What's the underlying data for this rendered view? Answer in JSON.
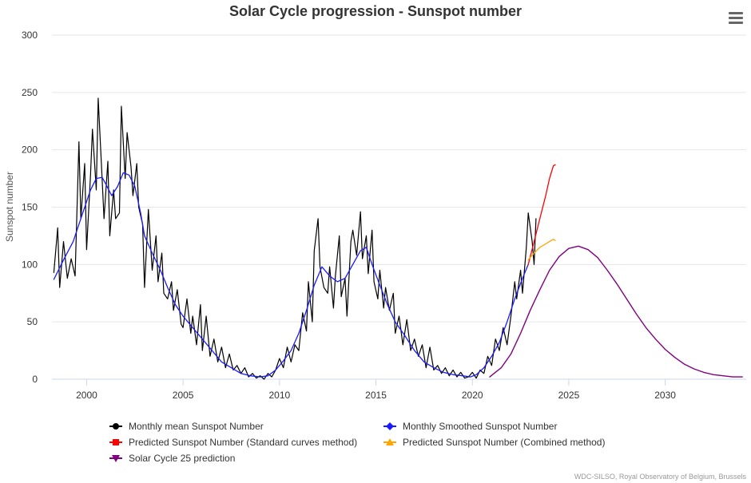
{
  "chart_data": {
    "type": "line",
    "title": "Solar Cycle progression - Sunspot number",
    "xlabel": "",
    "ylabel": "Sunspot number",
    "xlim": [
      1998.2,
      2034.2
    ],
    "ylim": [
      0,
      300
    ],
    "x_ticks": [
      2000,
      2005,
      2010,
      2015,
      2020,
      2025,
      2030
    ],
    "y_ticks": [
      0,
      50,
      100,
      150,
      200,
      250,
      300
    ],
    "grid": "horizontal",
    "legend_position": "bottom",
    "series": [
      {
        "name": "Monthly mean Sunspot Number",
        "color": "#000000",
        "marker": "circle",
        "points": [
          [
            1998.3,
            93
          ],
          [
            1998.5,
            132
          ],
          [
            1998.6,
            80
          ],
          [
            1998.8,
            120
          ],
          [
            1999.0,
            88
          ],
          [
            1999.2,
            105
          ],
          [
            1999.4,
            90
          ],
          [
            1999.6,
            207
          ],
          [
            1999.7,
            140
          ],
          [
            1999.9,
            188
          ],
          [
            2000.0,
            113
          ],
          [
            2000.2,
            178
          ],
          [
            2000.3,
            218
          ],
          [
            2000.5,
            165
          ],
          [
            2000.6,
            245
          ],
          [
            2000.8,
            175
          ],
          [
            2000.9,
            140
          ],
          [
            2001.1,
            190
          ],
          [
            2001.2,
            125
          ],
          [
            2001.4,
            165
          ],
          [
            2001.5,
            140
          ],
          [
            2001.7,
            145
          ],
          [
            2001.8,
            238
          ],
          [
            2002.0,
            175
          ],
          [
            2002.1,
            215
          ],
          [
            2002.3,
            185
          ],
          [
            2002.4,
            160
          ],
          [
            2002.6,
            188
          ],
          [
            2002.7,
            150
          ],
          [
            2002.9,
            135
          ],
          [
            2003.0,
            80
          ],
          [
            2003.2,
            148
          ],
          [
            2003.4,
            95
          ],
          [
            2003.6,
            125
          ],
          [
            2003.7,
            85
          ],
          [
            2003.9,
            110
          ],
          [
            2004.0,
            75
          ],
          [
            2004.2,
            70
          ],
          [
            2004.4,
            85
          ],
          [
            2004.5,
            60
          ],
          [
            2004.7,
            78
          ],
          [
            2004.9,
            48
          ],
          [
            2005.0,
            45
          ],
          [
            2005.2,
            70
          ],
          [
            2005.4,
            40
          ],
          [
            2005.5,
            55
          ],
          [
            2005.7,
            30
          ],
          [
            2005.9,
            65
          ],
          [
            2006.0,
            25
          ],
          [
            2006.2,
            55
          ],
          [
            2006.4,
            20
          ],
          [
            2006.6,
            35
          ],
          [
            2006.8,
            15
          ],
          [
            2007.0,
            28
          ],
          [
            2007.2,
            10
          ],
          [
            2007.4,
            22
          ],
          [
            2007.6,
            8
          ],
          [
            2007.8,
            12
          ],
          [
            2008.0,
            5
          ],
          [
            2008.2,
            10
          ],
          [
            2008.4,
            2
          ],
          [
            2008.6,
            5
          ],
          [
            2008.8,
            1
          ],
          [
            2009.0,
            3
          ],
          [
            2009.2,
            0
          ],
          [
            2009.4,
            5
          ],
          [
            2009.6,
            2
          ],
          [
            2009.8,
            8
          ],
          [
            2010.0,
            18
          ],
          [
            2010.2,
            10
          ],
          [
            2010.4,
            28
          ],
          [
            2010.6,
            15
          ],
          [
            2010.8,
            30
          ],
          [
            2011.0,
            25
          ],
          [
            2011.2,
            58
          ],
          [
            2011.4,
            42
          ],
          [
            2011.5,
            85
          ],
          [
            2011.7,
            50
          ],
          [
            2011.8,
            112
          ],
          [
            2012.0,
            140
          ],
          [
            2012.1,
            98
          ],
          [
            2012.3,
            80
          ],
          [
            2012.5,
            75
          ],
          [
            2012.6,
            98
          ],
          [
            2012.8,
            62
          ],
          [
            2012.9,
            90
          ],
          [
            2013.1,
            125
          ],
          [
            2013.2,
            72
          ],
          [
            2013.4,
            88
          ],
          [
            2013.5,
            55
          ],
          [
            2013.7,
            120
          ],
          [
            2013.8,
            130
          ],
          [
            2014.0,
            108
          ],
          [
            2014.2,
            146
          ],
          [
            2014.3,
            105
          ],
          [
            2014.5,
            125
          ],
          [
            2014.6,
            92
          ],
          [
            2014.8,
            130
          ],
          [
            2014.9,
            85
          ],
          [
            2015.1,
            70
          ],
          [
            2015.2,
            95
          ],
          [
            2015.4,
            62
          ],
          [
            2015.5,
            80
          ],
          [
            2015.7,
            60
          ],
          [
            2015.9,
            75
          ],
          [
            2016.0,
            40
          ],
          [
            2016.2,
            55
          ],
          [
            2016.4,
            30
          ],
          [
            2016.6,
            52
          ],
          [
            2016.8,
            25
          ],
          [
            2017.0,
            35
          ],
          [
            2017.2,
            20
          ],
          [
            2017.4,
            30
          ],
          [
            2017.6,
            10
          ],
          [
            2017.8,
            28
          ],
          [
            2018.0,
            8
          ],
          [
            2018.2,
            12
          ],
          [
            2018.4,
            5
          ],
          [
            2018.6,
            10
          ],
          [
            2018.8,
            3
          ],
          [
            2019.0,
            8
          ],
          [
            2019.2,
            2
          ],
          [
            2019.4,
            6
          ],
          [
            2019.6,
            1
          ],
          [
            2019.8,
            2
          ],
          [
            2020.0,
            6
          ],
          [
            2020.2,
            1
          ],
          [
            2020.4,
            8
          ],
          [
            2020.6,
            5
          ],
          [
            2020.8,
            20
          ],
          [
            2021.0,
            12
          ],
          [
            2021.2,
            35
          ],
          [
            2021.4,
            25
          ],
          [
            2021.6,
            45
          ],
          [
            2021.8,
            30
          ],
          [
            2022.0,
            55
          ],
          [
            2022.2,
            85
          ],
          [
            2022.3,
            70
          ],
          [
            2022.5,
            95
          ],
          [
            2022.6,
            75
          ],
          [
            2022.8,
            115
          ],
          [
            2022.9,
            145
          ],
          [
            2023.1,
            120
          ],
          [
            2023.2,
            100
          ],
          [
            2023.3,
            140
          ]
        ]
      },
      {
        "name": "Monthly Smoothed Sunspot Number",
        "color": "#1a1aff",
        "marker": "diamond",
        "points": [
          [
            1998.3,
            87
          ],
          [
            1998.8,
            104
          ],
          [
            1999.3,
            120
          ],
          [
            1999.8,
            145
          ],
          [
            2000.2,
            165
          ],
          [
            2000.5,
            175
          ],
          [
            2000.8,
            176
          ],
          [
            2001.0,
            170
          ],
          [
            2001.3,
            160
          ],
          [
            2001.6,
            168
          ],
          [
            2001.9,
            180
          ],
          [
            2002.2,
            178
          ],
          [
            2002.5,
            168
          ],
          [
            2002.8,
            145
          ],
          [
            2003.0,
            125
          ],
          [
            2003.4,
            110
          ],
          [
            2003.8,
            96
          ],
          [
            2004.2,
            80
          ],
          [
            2004.6,
            65
          ],
          [
            2005.0,
            55
          ],
          [
            2005.5,
            45
          ],
          [
            2006.0,
            35
          ],
          [
            2006.5,
            25
          ],
          [
            2007.0,
            15
          ],
          [
            2007.5,
            10
          ],
          [
            2008.0,
            5
          ],
          [
            2008.5,
            3
          ],
          [
            2009.0,
            2
          ],
          [
            2009.4,
            3
          ],
          [
            2009.8,
            8
          ],
          [
            2010.2,
            16
          ],
          [
            2010.6,
            25
          ],
          [
            2011.0,
            40
          ],
          [
            2011.4,
            60
          ],
          [
            2011.8,
            82
          ],
          [
            2012.2,
            98
          ],
          [
            2012.6,
            90
          ],
          [
            2013.0,
            85
          ],
          [
            2013.4,
            88
          ],
          [
            2013.8,
            100
          ],
          [
            2014.2,
            112
          ],
          [
            2014.5,
            115
          ],
          [
            2014.8,
            100
          ],
          [
            2015.2,
            82
          ],
          [
            2015.6,
            65
          ],
          [
            2016.0,
            50
          ],
          [
            2016.5,
            38
          ],
          [
            2017.0,
            25
          ],
          [
            2017.5,
            15
          ],
          [
            2018.0,
            10
          ],
          [
            2018.5,
            6
          ],
          [
            2019.0,
            4
          ],
          [
            2019.5,
            3
          ],
          [
            2019.9,
            2
          ],
          [
            2020.2,
            4
          ],
          [
            2020.6,
            10
          ],
          [
            2021.0,
            20
          ],
          [
            2021.4,
            32
          ],
          [
            2021.8,
            50
          ],
          [
            2022.2,
            70
          ],
          [
            2022.6,
            88
          ],
          [
            2022.9,
            100
          ]
        ]
      },
      {
        "name": "Predicted Sunspot Number (Standard curves method)",
        "color": "#ff0000",
        "marker": "square",
        "points": [
          [
            2022.9,
            100
          ],
          [
            2023.2,
            120
          ],
          [
            2023.5,
            140
          ],
          [
            2023.8,
            160
          ],
          [
            2024.0,
            175
          ],
          [
            2024.2,
            186
          ],
          [
            2024.3,
            187
          ]
        ]
      },
      {
        "name": "Predicted Sunspot Number (Combined method)",
        "color": "#ffa500",
        "marker": "triangle",
        "points": [
          [
            2022.9,
            104
          ],
          [
            2023.2,
            110
          ],
          [
            2023.5,
            115
          ],
          [
            2023.8,
            118
          ],
          [
            2024.0,
            120
          ],
          [
            2024.2,
            122
          ],
          [
            2024.3,
            121
          ]
        ]
      },
      {
        "name": "Solar Cycle 25 prediction",
        "color": "#800080",
        "marker": "triangle-down",
        "points": [
          [
            2020.9,
            2
          ],
          [
            2021.5,
            10
          ],
          [
            2022.0,
            22
          ],
          [
            2022.5,
            40
          ],
          [
            2023.0,
            60
          ],
          [
            2023.5,
            78
          ],
          [
            2024.0,
            95
          ],
          [
            2024.5,
            107
          ],
          [
            2025.0,
            114
          ],
          [
            2025.5,
            116
          ],
          [
            2026.0,
            113
          ],
          [
            2026.5,
            106
          ],
          [
            2027.0,
            95
          ],
          [
            2027.5,
            83
          ],
          [
            2028.0,
            70
          ],
          [
            2028.5,
            57
          ],
          [
            2029.0,
            45
          ],
          [
            2029.5,
            35
          ],
          [
            2030.0,
            26
          ],
          [
            2030.5,
            19
          ],
          [
            2031.0,
            13
          ],
          [
            2031.5,
            9
          ],
          [
            2032.0,
            6
          ],
          [
            2032.5,
            4
          ],
          [
            2033.0,
            3
          ],
          [
            2033.5,
            2
          ],
          [
            2034.0,
            2
          ]
        ]
      }
    ]
  },
  "credits": "WDC-SILSO, Royal Observatory of Belgium, Brussels",
  "menu_icon": "hamburger-menu-icon"
}
